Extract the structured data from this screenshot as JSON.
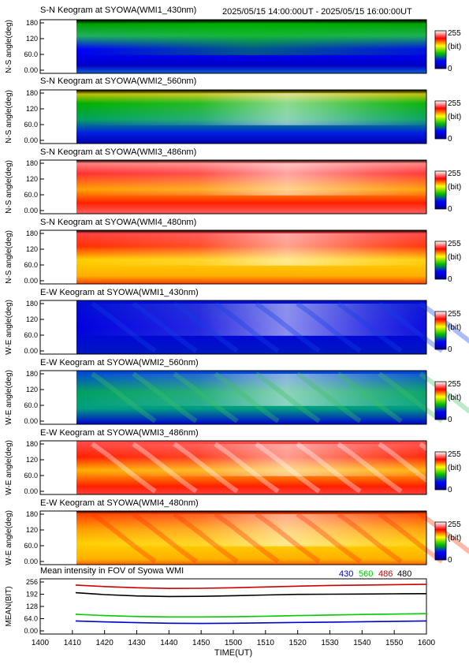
{
  "header": {
    "time_range": "2025/05/15 14:00:00UT - 2025/05/15 16:00:00UT"
  },
  "colorbar": {
    "max_label": "255",
    "unit_label": "(bit)",
    "min_label": "0"
  },
  "panels": [
    {
      "title": "S-N Keogram at SYOWA(WMI1_430nm)",
      "ylabel": "N-S angle(deg)",
      "palette": "b",
      "yticks": [
        "180",
        "120",
        "60.0",
        "0.00"
      ]
    },
    {
      "title": "S-N Keogram at SYOWA(WMI2_560nm)",
      "ylabel": "N-S angle(deg)",
      "palette": "g",
      "yticks": [
        "180",
        "120",
        "60.0",
        "0.00"
      ]
    },
    {
      "title": "S-N Keogram at SYOWA(WMI3_486nm)",
      "ylabel": "N-S angle(deg)",
      "palette": "r",
      "yticks": [
        "180",
        "120",
        "60.0",
        "0.00"
      ]
    },
    {
      "title": "S-N Keogram at SYOWA(WMI4_480nm)",
      "ylabel": "N-S angle(deg)",
      "palette": "y",
      "yticks": [
        "180",
        "120",
        "60.0",
        "0.00"
      ]
    },
    {
      "title": "E-W Keogram at SYOWA(WMI1_430nm)",
      "ylabel": "W-E angle(deg)",
      "palette": "b",
      "yticks": [
        "180",
        "120",
        "60.0",
        "0.00"
      ]
    },
    {
      "title": "E-W Keogram at SYOWA(WMI2_560nm)",
      "ylabel": "W-E angle(deg)",
      "palette": "g",
      "yticks": [
        "180",
        "120",
        "60.0",
        "0.00"
      ]
    },
    {
      "title": "E-W Keogram at SYOWA(WMI3_486nm)",
      "ylabel": "W-E angle(deg)",
      "palette": "r",
      "yticks": [
        "180",
        "120",
        "60.0",
        "0.00"
      ]
    },
    {
      "title": "E-W Keogram at SYOWA(WMI4_480nm)",
      "ylabel": "W-E angle(deg)",
      "palette": "y",
      "yticks": [
        "180",
        "120",
        "60.0",
        "0.00"
      ]
    }
  ],
  "colors": {
    "c430": "#0000cc",
    "c560": "#00cc00",
    "c486": "#cc0000",
    "c480": "#000000"
  },
  "chart_data": {
    "type": "line",
    "title": "Mean intensity in FOV of Syowa WMI",
    "xlabel": "TIME(UT)",
    "ylabel": "MEAN(BIT)",
    "xlim": [
      1400,
      1600
    ],
    "ylim": [
      0,
      256
    ],
    "xticks": [
      "1400",
      "1410",
      "1420",
      "1430",
      "1440",
      "1450",
      "1500",
      "1510",
      "1520",
      "1530",
      "1540",
      "1550",
      "1600"
    ],
    "yticks": [
      "256",
      "192",
      "128",
      "64.0",
      "0.00"
    ],
    "x": [
      1411,
      1420,
      1430,
      1440,
      1450,
      1500,
      1510,
      1520,
      1530,
      1540,
      1550,
      1600
    ],
    "series": [
      {
        "name": "430",
        "color": "#0000cc",
        "values": [
          52,
          47,
          43,
          40,
          39,
          40,
          42,
          44,
          46,
          48,
          50,
          52
        ]
      },
      {
        "name": "560",
        "color": "#00cc00",
        "values": [
          87,
          80,
          75,
          73,
          73,
          74,
          77,
          80,
          83,
          86,
          88,
          90
        ]
      },
      {
        "name": "486",
        "color": "#cc0000",
        "values": [
          240,
          232,
          226,
          222,
          223,
          226,
          230,
          234,
          238,
          240,
          242,
          244
        ]
      },
      {
        "name": "480",
        "color": "#000000",
        "values": [
          200,
          190,
          183,
          180,
          181,
          184,
          188,
          191,
          192,
          193,
          194,
          195
        ]
      }
    ]
  }
}
